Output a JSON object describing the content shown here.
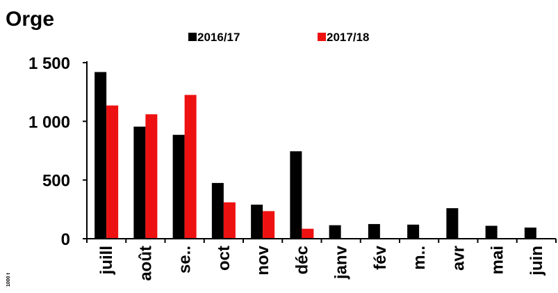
{
  "chart_data": {
    "type": "bar",
    "title": "Orge",
    "unit_label": "1000 t",
    "categories": [
      "juill",
      "août",
      "se..",
      "oct",
      "nov",
      "déc",
      "janv",
      "fév",
      "m..",
      "avr",
      "mai",
      "juin"
    ],
    "series": [
      {
        "name": "2016/17",
        "color": "#000000",
        "values": [
          1420,
          955,
          885,
          475,
          290,
          745,
          115,
          125,
          120,
          260,
          110,
          95
        ]
      },
      {
        "name": "2017/18",
        "color": "#ee1111",
        "values": [
          1135,
          1060,
          1225,
          310,
          235,
          85,
          null,
          null,
          null,
          null,
          null,
          null
        ]
      }
    ],
    "yticks": [
      0,
      500,
      1000,
      1500
    ],
    "ytick_labels": [
      "0",
      "500",
      "1 000",
      "1 500"
    ],
    "ylim": [
      0,
      1500
    ],
    "grid": false,
    "legend_position": "top"
  }
}
